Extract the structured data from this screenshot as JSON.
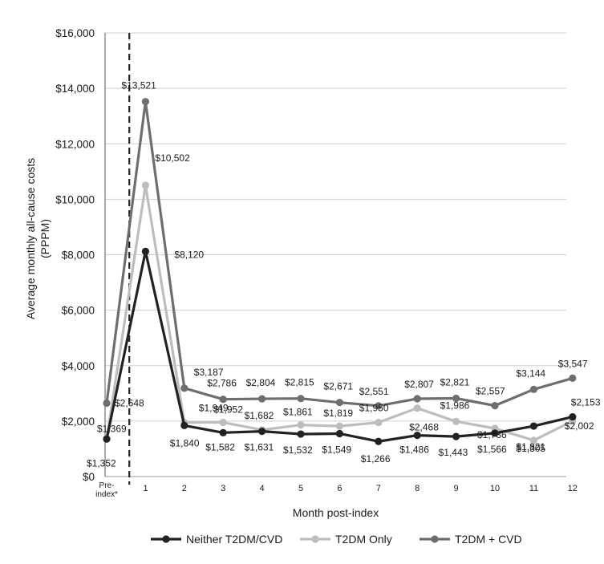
{
  "chart_data": {
    "type": "line",
    "title": "",
    "xlabel": "Month post-index",
    "ylabel": "Average monthly all-cause costs (PPPM)",
    "ylim": [
      0,
      16000
    ],
    "yticks": [
      "$0",
      "$2,000",
      "$4,000",
      "$6,000",
      "$8,000",
      "$10,000",
      "$12,000",
      "$14,000",
      "$16,000"
    ],
    "categories": [
      "Pre-index*",
      "1",
      "2",
      "3",
      "4",
      "5",
      "6",
      "7",
      "8",
      "9",
      "10",
      "11",
      "12"
    ],
    "grid": true,
    "legend_position": "bottom",
    "series": [
      {
        "name": "Neither T2DM/CVD",
        "color": "#222222",
        "values": [
          1352,
          8120,
          1840,
          1582,
          1631,
          1532,
          1549,
          1266,
          1486,
          1443,
          1566,
          1821,
          2153
        ],
        "labels": [
          "$1,352",
          "$8,120",
          "$1,840",
          "$1,582",
          "$1,631",
          "$1,532",
          "$1,549",
          "$1,266",
          "$1,486",
          "$1,443",
          "$1,566",
          "$1,821",
          "$2,153"
        ]
      },
      {
        "name": "T2DM Only",
        "color": "#bdbdbd",
        "values": [
          1369,
          10502,
          1949,
          1952,
          1682,
          1861,
          1819,
          1950,
          2468,
          1986,
          1736,
          1305,
          2002
        ],
        "labels": [
          "$1,369",
          "$10,502",
          "$1,949",
          "$1,952",
          "$1,682",
          "$1,861",
          "$1,819",
          "$1,950",
          "$2,468",
          "$1,986",
          "$1,736",
          "$1,305",
          "$2,002"
        ]
      },
      {
        "name": "T2DM + CVD",
        "color": "#6e6e6e",
        "values": [
          2648,
          13521,
          3187,
          2786,
          2804,
          2815,
          2671,
          2551,
          2807,
          2821,
          2557,
          3144,
          3547
        ],
        "labels": [
          "$2,648",
          "$13,521",
          "$3,187",
          "$2,786",
          "$2,804",
          "$2,815",
          "$2,671",
          "$2,551",
          "$2,807",
          "$2,821",
          "$2,557",
          "$3,144",
          "$3,547"
        ]
      }
    ]
  }
}
